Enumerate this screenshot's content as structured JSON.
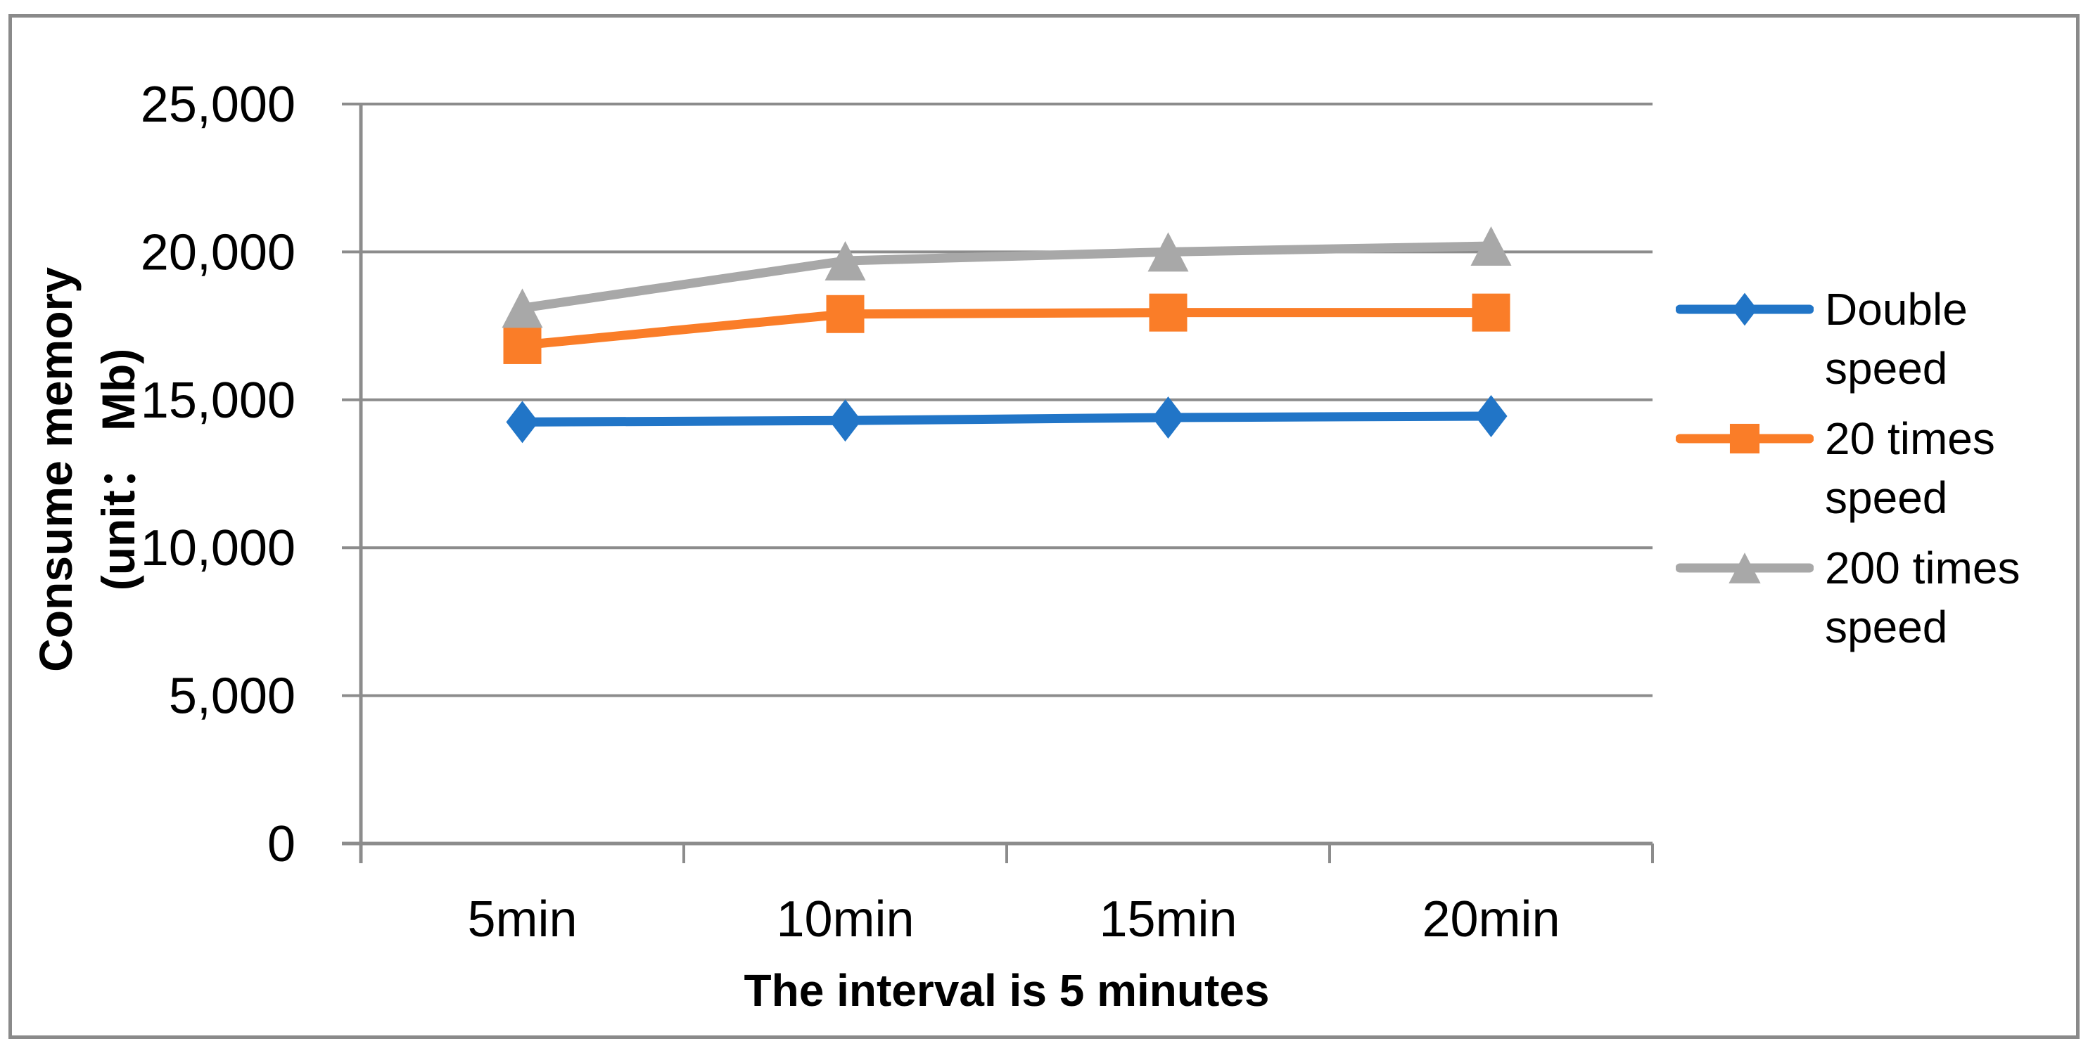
{
  "styles": {
    "background": "#FFFFFF",
    "border_color": "#8A8A8A",
    "grid_color": "#8C8C8C",
    "axis_color": "#8C8C8C",
    "text_color": "#000000"
  },
  "chart_data": {
    "type": "line",
    "categories": [
      "5min",
      "10min",
      "15min",
      "20min"
    ],
    "series": [
      {
        "name": "Double speed",
        "legend_lines": [
          "Double",
          "speed"
        ],
        "marker": "diamond",
        "color": "#2175C7",
        "values": [
          14250,
          14300,
          14400,
          14450
        ]
      },
      {
        "name": "20 times speed",
        "legend_lines": [
          "20 times",
          "speed"
        ],
        "marker": "square",
        "color": "#FA7D28",
        "values": [
          16850,
          17900,
          17950,
          17950
        ]
      },
      {
        "name": "200 times speed",
        "legend_lines": [
          "200 times",
          "speed"
        ],
        "marker": "triangle",
        "color": "#A8A8A8",
        "values": [
          18100,
          19700,
          20000,
          20200
        ]
      }
    ],
    "xlabel": "The interval is 5 minutes",
    "ylabel": "Consume memory (unit：  Mb)",
    "ylabel_lines": [
      "Consume memory",
      "(unit：  Mb)"
    ],
    "ylim": [
      0,
      25000
    ],
    "y_ticks": [
      0,
      5000,
      10000,
      15000,
      20000,
      25000
    ],
    "y_tick_labels": [
      "0",
      "5,000",
      "10,000",
      "15,000",
      "20,000",
      "25,000"
    ],
    "grid": "horizontal gridlines",
    "legend_position": "right"
  }
}
